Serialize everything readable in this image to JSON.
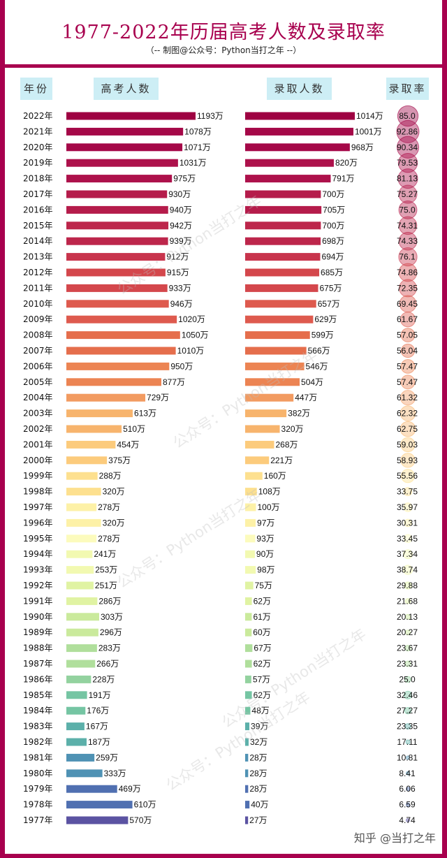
{
  "title": "1977-2022年历届高考人数及录取率",
  "subtitle": "（-- 制图@公众号：Python当打之年 --）",
  "headers": {
    "year": "年份",
    "applicants": "高考人数",
    "admitted": "录取人数",
    "rate": "录取率"
  },
  "watermarks": [
    "公众号：Python当打之年",
    "公众号：Python当打之年",
    "公众号：Python当打之年",
    "公众号：Python当打之年",
    "公众号：Python当打之年"
  ],
  "credit": "知乎 @当打之年",
  "unit": "万",
  "year_suffix": "年",
  "chart_data": {
    "type": "bar",
    "categories": [
      "2022",
      "2021",
      "2020",
      "2019",
      "2018",
      "2017",
      "2016",
      "2015",
      "2014",
      "2013",
      "2012",
      "2011",
      "2010",
      "2009",
      "2008",
      "2007",
      "2006",
      "2005",
      "2004",
      "2003",
      "2002",
      "2001",
      "2000",
      "1999",
      "1998",
      "1997",
      "1996",
      "1995",
      "1994",
      "1993",
      "1992",
      "1991",
      "1990",
      "1989",
      "1988",
      "1987",
      "1986",
      "1985",
      "1984",
      "1983",
      "1982",
      "1981",
      "1980",
      "1979",
      "1978",
      "1977"
    ],
    "series": [
      {
        "name": "高考人数",
        "values": [
          1193,
          1078,
          1071,
          1031,
          975,
          930,
          940,
          942,
          939,
          912,
          915,
          933,
          946,
          1020,
          1050,
          1010,
          950,
          877,
          729,
          613,
          510,
          454,
          375,
          288,
          320,
          278,
          320,
          278,
          241,
          253,
          251,
          286,
          303,
          296,
          283,
          266,
          228,
          191,
          176,
          167,
          187,
          259,
          333,
          469,
          610,
          570
        ]
      },
      {
        "name": "录取人数",
        "values": [
          1014,
          1001,
          968,
          820,
          791,
          700,
          705,
          700,
          698,
          694,
          685,
          675,
          657,
          629,
          599,
          566,
          546,
          504,
          447,
          382,
          320,
          268,
          221,
          160,
          108,
          100,
          97,
          93,
          90,
          98,
          75,
          62,
          61,
          60,
          67,
          62,
          57,
          62,
          48,
          39,
          32,
          28,
          28,
          28,
          40,
          27
        ]
      },
      {
        "name": "录取率",
        "values": [
          "85.0",
          "92.86",
          "90.34",
          "79.53",
          "81.13",
          "75.27",
          "75.0",
          "74.31",
          "74.33",
          "76.1",
          "74.86",
          "72.35",
          "69.45",
          "61.67",
          "57.05",
          "56.04",
          "57.47",
          "57.47",
          "61.32",
          "62.32",
          "62.75",
          "59.03",
          "58.93",
          "55.56",
          "33.75",
          "35.97",
          "30.31",
          "33.45",
          "37.34",
          "38.74",
          "29.88",
          "21.68",
          "20.13",
          "20.27",
          "23.67",
          "23.31",
          "25.0",
          "32.46",
          "27.27",
          "23.35",
          "17.11",
          "10.81",
          "8.41",
          "6.06",
          "6.59",
          "4.74"
        ]
      }
    ],
    "colors": {
      "frame": "#a8004e",
      "header_bg": "#cdeef5",
      "palette": [
        "#9e0142",
        "#a50848",
        "#ad114b",
        "#b51c4b",
        "#bd264b",
        "#c8344c",
        "#d4474c",
        "#de5a4e",
        "#e56e4c",
        "#ec8453",
        "#f29b61",
        "#f7b46d",
        "#fccb7c",
        "#fde08f",
        "#fdf1a7",
        "#fcfbbd",
        "#f2f9b1",
        "#e0f3a3",
        "#caea9c",
        "#b0df9c",
        "#93d29f",
        "#75c5a3",
        "#5cb0aa",
        "#4f92b4",
        "#5070b1",
        "#5b53a2"
      ]
    }
  }
}
